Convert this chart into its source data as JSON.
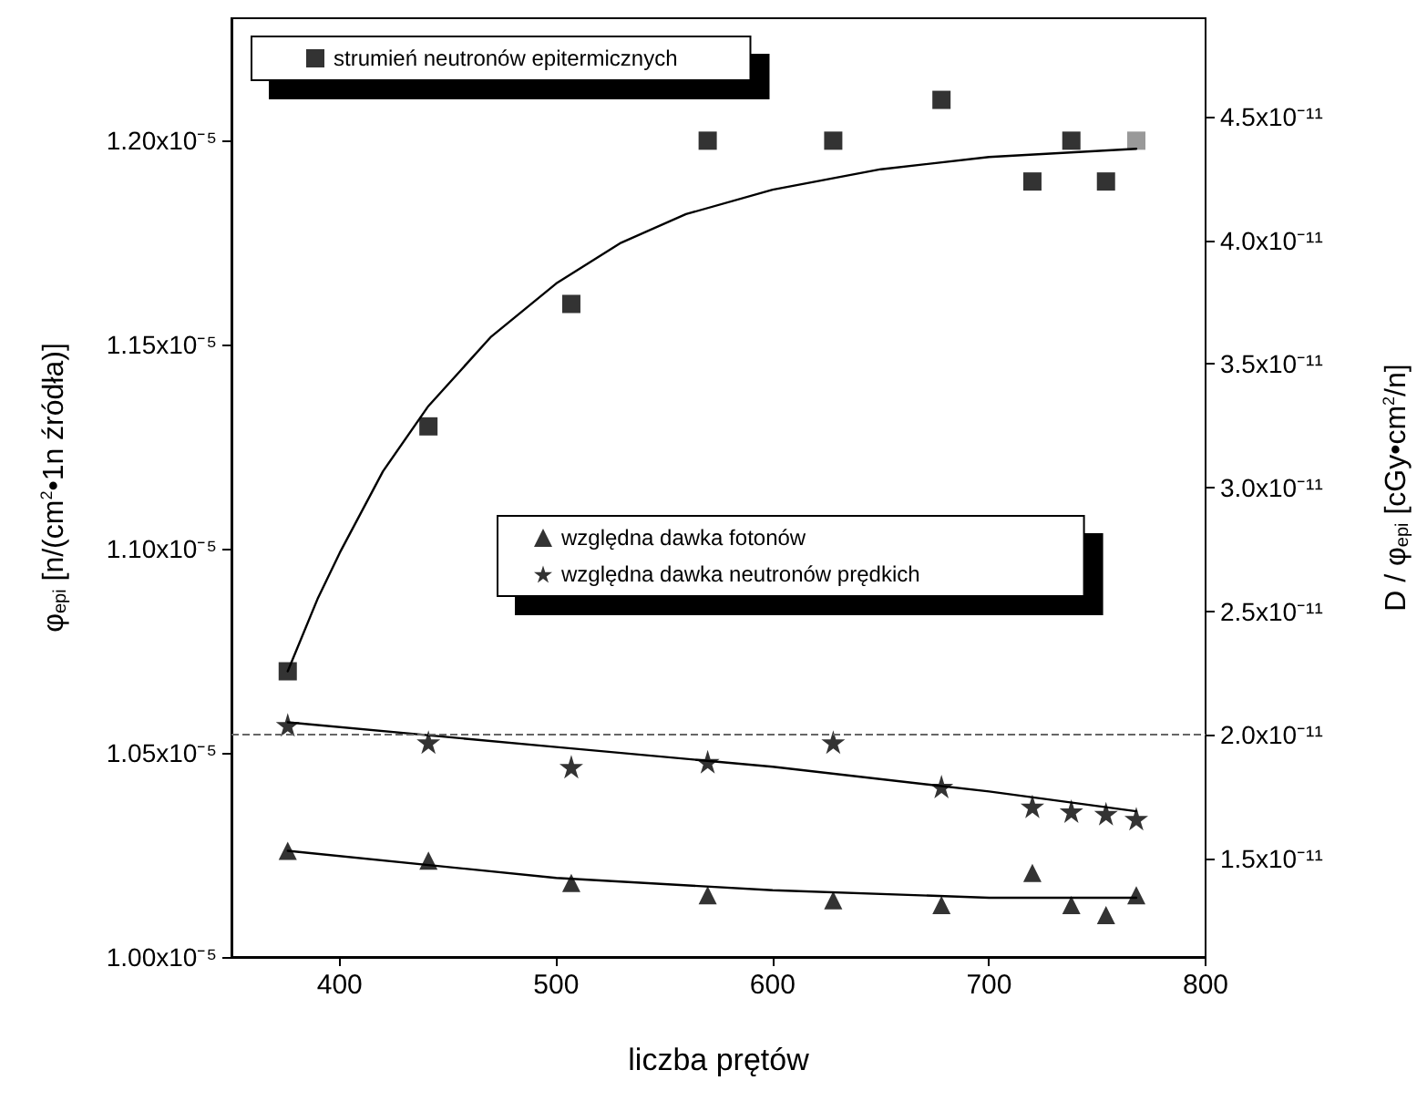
{
  "chart_data": {
    "type": "scatter",
    "xlabel": "liczba prętów",
    "ylabel": "φ$_{epi}$ [n/(cm$^{2}$•1n źródła)]",
    "y2label": "D / φ$_{epi}$ [cGy•cm$^{2}$/n]",
    "x": [
      376,
      441,
      507,
      570,
      628,
      678,
      720,
      738,
      754,
      768
    ],
    "xlim": [
      350,
      800
    ],
    "xticks": [
      400,
      500,
      600,
      700,
      800
    ],
    "ylim": [
      1e-05,
      1.23e-05
    ],
    "yticks": [
      {
        "value": 1e-05,
        "label": "1.00x10⁻⁵"
      },
      {
        "value": 1.05e-05,
        "label": "1.05x10⁻⁵"
      },
      {
        "value": 1.1e-05,
        "label": "1.10x10⁻⁵"
      },
      {
        "value": 1.15e-05,
        "label": "1.15x10⁻⁵"
      },
      {
        "value": 1.2e-05,
        "label": "1.20x10⁻⁵"
      }
    ],
    "y2lim": [
      1.1e-11,
      4.9e-11
    ],
    "y2ticks": [
      {
        "value": 1.5e-11,
        "label": "1.5x10⁻¹¹"
      },
      {
        "value": 2e-11,
        "label": "2.0x10⁻¹¹"
      },
      {
        "value": 2.5e-11,
        "label": "2.5x10⁻¹¹"
      },
      {
        "value": 3e-11,
        "label": "3.0x10⁻¹¹"
      },
      {
        "value": 3.5e-11,
        "label": "3.5x10⁻¹¹"
      },
      {
        "value": 4e-11,
        "label": "4.0x10⁻¹¹"
      },
      {
        "value": 4.5e-11,
        "label": "4.5x10⁻¹¹"
      }
    ],
    "grid": false,
    "legend": "top left",
    "series": [
      {
        "name": "strumień neutronów epitermicznych",
        "color": "#000000",
        "marker": "square",
        "values": [
          1.07e-05,
          1.13e-05,
          1.16e-05,
          1.2e-05,
          1.2e-05,
          1.21e-05,
          1.19e-05,
          1.2e-05,
          1.19e-05,
          1.2e-05
        ],
        "colors": [
          "#000000",
          "#000000",
          "#000000",
          "#000000",
          "#000000",
          "#000000",
          "#000000",
          "#000000",
          "#000000",
          "#808080"
        ]
      },
      {
        "name": "względna dawka fotonów",
        "color": "#000000",
        "marker": "triangle",
        "axis": "y2",
        "values": [
          1.53e-11,
          1.49e-11,
          1.4e-11,
          1.35e-11,
          1.33e-11,
          1.31e-11,
          1.44e-11,
          1.31e-11,
          1.27e-11,
          1.35e-11
        ]
      },
      {
        "name": "względna dawka neutronów prędkich",
        "color": "#000000",
        "marker": "star",
        "axis": "y2",
        "values": [
          2.04e-11,
          1.97e-11,
          1.87e-11,
          1.89e-11,
          1.97e-11,
          1.79e-11,
          1.71e-11,
          1.69e-11,
          1.68e-11,
          1.66e-11
        ]
      },
      {
        "type": "line",
        "color": "#000000",
        "marker": "none",
        "line_style": "solid",
        "x": [
          376,
          390,
          400,
          420,
          441,
          470,
          500,
          530,
          560,
          600,
          650,
          700,
          768
        ],
        "values": [
          1.07e-05,
          1.088e-05,
          1.099e-05,
          1.119e-05,
          1.135e-05,
          1.152e-05,
          1.165e-05,
          1.175e-05,
          1.182e-05,
          1.188e-05,
          1.193e-05,
          1.196e-05,
          1.198e-05
        ]
      },
      {
        "type": "line",
        "color": "#000000",
        "marker": "none",
        "line_style": "solid",
        "axis": "y2",
        "x": [
          376,
          500,
          600,
          700,
          768
        ],
        "values": [
          1.53e-11,
          1.42e-11,
          1.37e-11,
          1.34e-11,
          1.34e-11
        ]
      },
      {
        "type": "line",
        "color": "#000000",
        "marker": "none",
        "line_style": "solid",
        "axis": "y2",
        "x": [
          376,
          500,
          600,
          700,
          768
        ],
        "values": [
          2.05e-11,
          1.95e-11,
          1.87e-11,
          1.77e-11,
          1.69e-11
        ]
      }
    ],
    "ref_lines": [
      {
        "axis": "y2",
        "value": 2e-11,
        "color": "#666666",
        "line_style": "dashed"
      }
    ]
  }
}
